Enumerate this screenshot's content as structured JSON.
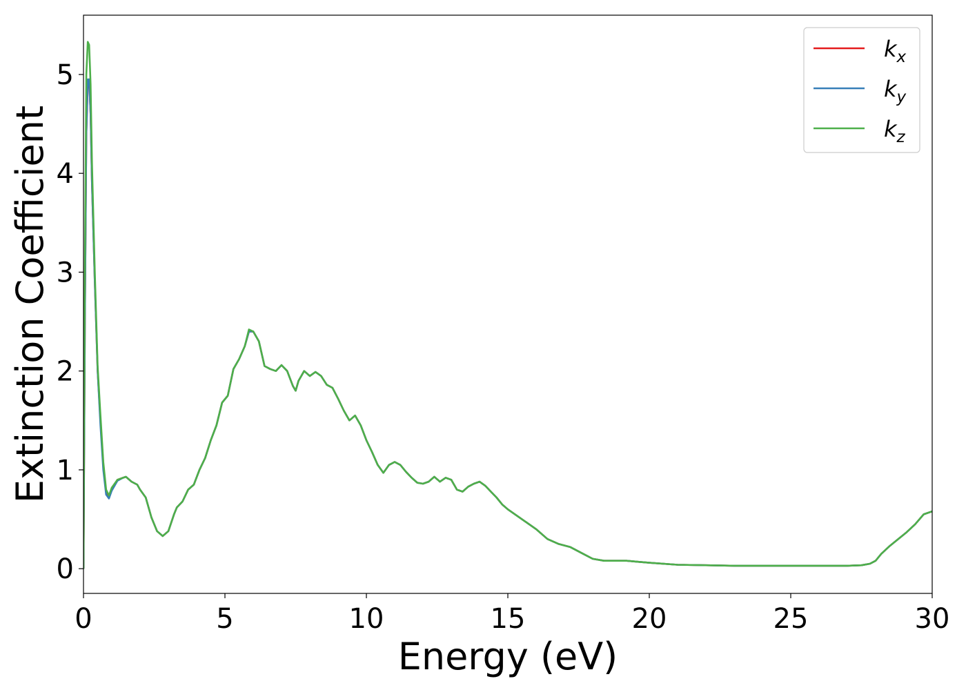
{
  "chart_data": {
    "type": "line",
    "title": "",
    "xlabel": "Energy (eV)",
    "ylabel": "Extinction Coefficient",
    "xlim": [
      0,
      30
    ],
    "ylim": [
      -0.25,
      5.6
    ],
    "xticks": [
      0,
      5,
      10,
      15,
      20,
      25,
      30
    ],
    "xtick_labels": [
      "0",
      "5",
      "10",
      "15",
      "20",
      "25",
      "30"
    ],
    "yticks": [
      0,
      1,
      2,
      3,
      4,
      5
    ],
    "ytick_labels": [
      "0",
      "1",
      "2",
      "3",
      "4",
      "5"
    ],
    "grid": false,
    "legend_position": "top-right",
    "series": [
      {
        "name": "k_x",
        "label_main": "k",
        "label_sub": "x",
        "color": "#e41a1c",
        "x": [
          0,
          0.05,
          0.1,
          0.15,
          0.2,
          0.25,
          0.3,
          0.4,
          0.5,
          0.6,
          0.7,
          0.8,
          0.9,
          1.0,
          1.2,
          1.4,
          1.5,
          1.7,
          1.9,
          2.0,
          2.2,
          2.4,
          2.6,
          2.8,
          3.0,
          3.2,
          3.3,
          3.5,
          3.7,
          3.9,
          4.1,
          4.3,
          4.5,
          4.7,
          4.9,
          5.1,
          5.3,
          5.5,
          5.7,
          5.85,
          6.0,
          6.2,
          6.4,
          6.6,
          6.8,
          7.0,
          7.2,
          7.4,
          7.5,
          7.6,
          7.8,
          8.0,
          8.2,
          8.4,
          8.6,
          8.8,
          9.0,
          9.2,
          9.4,
          9.6,
          9.8,
          10.0,
          10.2,
          10.4,
          10.6,
          10.8,
          11.0,
          11.2,
          11.4,
          11.6,
          11.8,
          12.0,
          12.2,
          12.4,
          12.6,
          12.8,
          13.0,
          13.2,
          13.4,
          13.6,
          13.8,
          14.0,
          14.2,
          14.4,
          14.6,
          14.8,
          15.0,
          15.3,
          15.6,
          16.0,
          16.4,
          16.8,
          17.2,
          17.6,
          18.0,
          18.4,
          18.8,
          19.2,
          19.6,
          20.0,
          21.0,
          22.0,
          23.0,
          24.0,
          25.0,
          26.0,
          27.0,
          27.5,
          27.8,
          28.0,
          28.2,
          28.5,
          28.8,
          29.1,
          29.4,
          29.7,
          30.0
        ],
        "y": [
          0,
          2.5,
          4.4,
          4.9,
          4.95,
          4.6,
          3.9,
          2.9,
          2.0,
          1.5,
          1.05,
          0.78,
          0.72,
          0.8,
          0.9,
          0.92,
          0.93,
          0.88,
          0.85,
          0.8,
          0.72,
          0.52,
          0.38,
          0.33,
          0.38,
          0.55,
          0.62,
          0.68,
          0.8,
          0.85,
          1.0,
          1.12,
          1.3,
          1.45,
          1.68,
          1.75,
          2.02,
          2.12,
          2.25,
          2.4,
          2.4,
          2.3,
          2.05,
          2.02,
          2.0,
          2.06,
          2.0,
          1.85,
          1.8,
          1.9,
          2.0,
          1.95,
          1.99,
          1.95,
          1.86,
          1.83,
          1.72,
          1.6,
          1.5,
          1.55,
          1.45,
          1.3,
          1.18,
          1.05,
          0.97,
          1.05,
          1.08,
          1.05,
          0.98,
          0.92,
          0.87,
          0.86,
          0.88,
          0.93,
          0.88,
          0.92,
          0.9,
          0.8,
          0.78,
          0.83,
          0.86,
          0.88,
          0.84,
          0.78,
          0.72,
          0.65,
          0.6,
          0.54,
          0.48,
          0.4,
          0.3,
          0.25,
          0.22,
          0.16,
          0.1,
          0.08,
          0.08,
          0.08,
          0.07,
          0.06,
          0.04,
          0.035,
          0.03,
          0.03,
          0.03,
          0.03,
          0.03,
          0.035,
          0.05,
          0.08,
          0.15,
          0.23,
          0.3,
          0.37,
          0.45,
          0.55,
          0.58
        ]
      },
      {
        "name": "k_y",
        "label_main": "k",
        "label_sub": "y",
        "color": "#377eb8",
        "x": [
          0,
          0.05,
          0.1,
          0.15,
          0.2,
          0.25,
          0.3,
          0.4,
          0.5,
          0.6,
          0.7,
          0.8,
          0.9,
          1.0,
          1.2,
          1.4,
          1.5,
          1.7,
          1.9,
          2.0,
          2.2,
          2.4,
          2.6,
          2.8,
          3.0,
          3.2,
          3.3,
          3.5,
          3.7,
          3.9,
          4.1,
          4.3,
          4.5,
          4.7,
          4.9,
          5.1,
          5.3,
          5.5,
          5.7,
          5.85,
          6.0,
          6.2,
          6.4,
          6.6,
          6.8,
          7.0,
          7.2,
          7.4,
          7.5,
          7.6,
          7.8,
          8.0,
          8.2,
          8.4,
          8.6,
          8.8,
          9.0,
          9.2,
          9.4,
          9.6,
          9.8,
          10.0,
          10.2,
          10.4,
          10.6,
          10.8,
          11.0,
          11.2,
          11.4,
          11.6,
          11.8,
          12.0,
          12.2,
          12.4,
          12.6,
          12.8,
          13.0,
          13.2,
          13.4,
          13.6,
          13.8,
          14.0,
          14.2,
          14.4,
          14.6,
          14.8,
          15.0,
          15.3,
          15.6,
          16.0,
          16.4,
          16.8,
          17.2,
          17.6,
          18.0,
          18.4,
          18.8,
          19.2,
          19.6,
          20.0,
          21.0,
          22.0,
          23.0,
          24.0,
          25.0,
          26.0,
          27.0,
          27.5,
          27.8,
          28.0,
          28.2,
          28.5,
          28.8,
          29.1,
          29.4,
          29.7,
          30.0
        ],
        "y": [
          0,
          2.5,
          4.4,
          4.95,
          4.95,
          4.6,
          3.9,
          2.9,
          2.0,
          1.45,
          1.0,
          0.75,
          0.71,
          0.79,
          0.89,
          0.92,
          0.93,
          0.88,
          0.85,
          0.8,
          0.72,
          0.52,
          0.38,
          0.33,
          0.38,
          0.55,
          0.62,
          0.68,
          0.8,
          0.85,
          1.0,
          1.12,
          1.3,
          1.45,
          1.68,
          1.75,
          2.02,
          2.12,
          2.25,
          2.4,
          2.4,
          2.3,
          2.05,
          2.02,
          2.0,
          2.06,
          2.0,
          1.85,
          1.8,
          1.9,
          2.0,
          1.95,
          1.99,
          1.95,
          1.86,
          1.83,
          1.72,
          1.6,
          1.5,
          1.55,
          1.45,
          1.3,
          1.18,
          1.05,
          0.97,
          1.05,
          1.08,
          1.05,
          0.98,
          0.92,
          0.87,
          0.86,
          0.88,
          0.93,
          0.88,
          0.92,
          0.9,
          0.8,
          0.78,
          0.83,
          0.86,
          0.88,
          0.84,
          0.78,
          0.72,
          0.65,
          0.6,
          0.54,
          0.48,
          0.4,
          0.3,
          0.25,
          0.22,
          0.16,
          0.1,
          0.08,
          0.08,
          0.08,
          0.07,
          0.06,
          0.04,
          0.035,
          0.03,
          0.03,
          0.03,
          0.03,
          0.03,
          0.035,
          0.05,
          0.08,
          0.15,
          0.23,
          0.3,
          0.37,
          0.45,
          0.55,
          0.58
        ]
      },
      {
        "name": "k_z",
        "label_main": "k",
        "label_sub": "z",
        "color": "#4daf4a",
        "x": [
          0,
          0.05,
          0.1,
          0.15,
          0.2,
          0.25,
          0.3,
          0.4,
          0.5,
          0.6,
          0.7,
          0.8,
          0.9,
          1.0,
          1.2,
          1.4,
          1.5,
          1.7,
          1.9,
          2.0,
          2.2,
          2.4,
          2.6,
          2.8,
          3.0,
          3.2,
          3.3,
          3.5,
          3.7,
          3.9,
          4.1,
          4.3,
          4.5,
          4.7,
          4.9,
          5.1,
          5.3,
          5.5,
          5.7,
          5.85,
          6.0,
          6.2,
          6.4,
          6.6,
          6.8,
          7.0,
          7.2,
          7.4,
          7.5,
          7.6,
          7.8,
          8.0,
          8.2,
          8.4,
          8.6,
          8.8,
          9.0,
          9.2,
          9.4,
          9.6,
          9.8,
          10.0,
          10.2,
          10.4,
          10.6,
          10.8,
          11.0,
          11.2,
          11.4,
          11.6,
          11.8,
          12.0,
          12.2,
          12.4,
          12.6,
          12.8,
          13.0,
          13.2,
          13.4,
          13.6,
          13.8,
          14.0,
          14.2,
          14.4,
          14.6,
          14.8,
          15.0,
          15.3,
          15.6,
          16.0,
          16.4,
          16.8,
          17.2,
          17.6,
          18.0,
          18.4,
          18.8,
          19.2,
          19.6,
          20.0,
          21.0,
          22.0,
          23.0,
          24.0,
          25.0,
          26.0,
          27.0,
          27.5,
          27.8,
          28.0,
          28.2,
          28.5,
          28.8,
          29.1,
          29.4,
          29.7,
          30.0
        ],
        "y": [
          0,
          3.0,
          5.0,
          5.33,
          5.3,
          4.9,
          4.1,
          3.0,
          2.05,
          1.55,
          1.08,
          0.8,
          0.74,
          0.82,
          0.9,
          0.92,
          0.93,
          0.88,
          0.85,
          0.8,
          0.72,
          0.52,
          0.38,
          0.33,
          0.38,
          0.55,
          0.62,
          0.68,
          0.8,
          0.85,
          1.0,
          1.12,
          1.3,
          1.45,
          1.68,
          1.75,
          2.02,
          2.12,
          2.25,
          2.42,
          2.4,
          2.3,
          2.05,
          2.02,
          2.0,
          2.06,
          2.0,
          1.85,
          1.8,
          1.9,
          2.0,
          1.95,
          1.99,
          1.95,
          1.86,
          1.83,
          1.72,
          1.6,
          1.5,
          1.55,
          1.45,
          1.3,
          1.18,
          1.05,
          0.97,
          1.05,
          1.08,
          1.05,
          0.98,
          0.92,
          0.87,
          0.86,
          0.88,
          0.93,
          0.88,
          0.92,
          0.9,
          0.8,
          0.78,
          0.83,
          0.86,
          0.88,
          0.84,
          0.78,
          0.72,
          0.65,
          0.6,
          0.54,
          0.48,
          0.4,
          0.3,
          0.25,
          0.22,
          0.16,
          0.1,
          0.08,
          0.08,
          0.08,
          0.07,
          0.06,
          0.04,
          0.035,
          0.03,
          0.03,
          0.03,
          0.03,
          0.03,
          0.035,
          0.05,
          0.08,
          0.15,
          0.23,
          0.3,
          0.37,
          0.45,
          0.55,
          0.58
        ]
      }
    ]
  }
}
